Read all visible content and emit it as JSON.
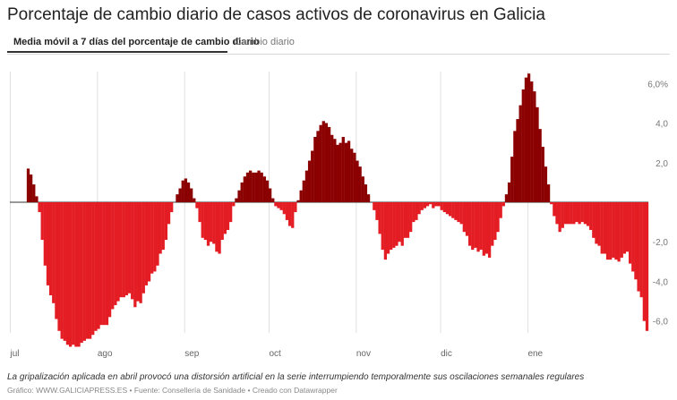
{
  "header": {
    "title": "Porcentaje de cambio diario de casos activos de coronavirus en Galicia"
  },
  "tabs": [
    {
      "label": "Media móvil a 7 días del porcentaje de cambio diario",
      "active": true
    },
    {
      "label": "Cambio diario",
      "active": false
    }
  ],
  "note": "La gripalización aplicada en abril provocó una distorsión artificial en la serie interrumpiendo temporalmente sus oscilaciones semanales regulares",
  "footer": "Gráfico: WWW.GALICIAPRESS.ES • Fuente: Consellería de Sanidade • Creado con Datawrapper",
  "colors": {
    "positive": "#8b0000",
    "negative": "#e31d23",
    "grid": "#e0e0e0",
    "zero": "#333333"
  },
  "chart_data": {
    "type": "bar",
    "title": "Porcentaje de cambio diario de casos activos de coronavirus en Galicia",
    "xlabel": "",
    "ylabel": "",
    "ylim": [
      -6.6,
      6.6
    ],
    "yticks": [
      6,
      4,
      2,
      0,
      -2,
      -4,
      -6
    ],
    "ytick_labels": [
      "6,0%",
      "4,0",
      "2,0",
      "",
      "-2,0",
      "-4,0",
      "-6,0"
    ],
    "xtick_labels": [
      "jul",
      "ago",
      "sep",
      "oct",
      "nov",
      "dic",
      "ene"
    ],
    "xtick_index": [
      0,
      31,
      62,
      92,
      123,
      153,
      184
    ],
    "start": "2020-07-01",
    "values": [
      0.0,
      0.0,
      0.0,
      0.0,
      0.0,
      0.0,
      1.7,
      1.4,
      0.9,
      0.3,
      -0.5,
      -1.9,
      -3.2,
      -4.2,
      -4.7,
      -5.1,
      -5.9,
      -6.5,
      -6.9,
      -7.0,
      -7.2,
      -7.3,
      -7.2,
      -7.3,
      -7.3,
      -7.1,
      -7.0,
      -6.9,
      -6.9,
      -6.7,
      -6.5,
      -6.4,
      -6.2,
      -6.2,
      -6.2,
      -5.8,
      -5.4,
      -5.2,
      -5.0,
      -4.8,
      -4.8,
      -4.7,
      -4.6,
      -4.9,
      -5.3,
      -5.0,
      -5.1,
      -4.6,
      -4.2,
      -4.0,
      -3.6,
      -3.5,
      -3.2,
      -2.6,
      -2.4,
      -1.9,
      -1.1,
      -0.5,
      0.0,
      0.4,
      0.7,
      1.1,
      1.2,
      1.0,
      0.7,
      0.2,
      -0.3,
      -1.0,
      -1.8,
      -1.9,
      -2.2,
      -2.0,
      -2.1,
      -2.5,
      -2.6,
      -1.9,
      -1.6,
      -1.4,
      -1.0,
      -0.2,
      0.2,
      0.6,
      1.0,
      1.3,
      1.5,
      1.6,
      1.5,
      1.5,
      1.6,
      1.5,
      1.3,
      1.1,
      0.7,
      0.2,
      -0.2,
      -0.3,
      -0.4,
      -0.6,
      -0.9,
      -1.2,
      -1.3,
      -0.5,
      0.1,
      0.6,
      1.1,
      1.6,
      2.1,
      2.6,
      3.3,
      3.6,
      3.9,
      4.1,
      4.0,
      3.8,
      3.4,
      3.2,
      2.9,
      3.0,
      3.3,
      3.0,
      3.1,
      2.7,
      2.5,
      2.1,
      1.8,
      1.3,
      0.9,
      0.4,
      0.0,
      -0.4,
      -0.9,
      -1.6,
      -2.4,
      -2.9,
      -2.6,
      -2.4,
      -2.3,
      -2.2,
      -2.0,
      -2.2,
      -1.8,
      -1.8,
      -1.5,
      -1.0,
      -0.9,
      -0.6,
      -0.4,
      -0.3,
      -0.2,
      -0.1,
      -0.3,
      -0.2,
      -0.2,
      -0.4,
      -0.5,
      -0.6,
      -0.7,
      -0.8,
      -0.9,
      -1.0,
      -1.1,
      -1.5,
      -1.7,
      -2.2,
      -2.4,
      -2.3,
      -2.5,
      -2.4,
      -2.7,
      -2.6,
      -2.8,
      -2.2,
      -1.9,
      -1.5,
      -0.8,
      -0.2,
      0.4,
      1.0,
      2.3,
      3.6,
      4.2,
      4.9,
      5.7,
      6.3,
      6.5,
      6.1,
      5.6,
      4.8,
      3.7,
      2.8,
      1.8,
      0.9,
      -0.1,
      -0.7,
      -1.1,
      -1.5,
      -1.3,
      -1.1,
      -1.1,
      -1.1,
      -1.1,
      -1.0,
      -1.1,
      -1.0,
      -1.1,
      -1.2,
      -1.4,
      -1.8,
      -2.1,
      -2.2,
      -2.6,
      -2.6,
      -2.9,
      -2.9,
      -2.8,
      -2.9,
      -3.0,
      -2.8,
      -2.6,
      -2.5,
      -3.1,
      -3.5,
      -3.9,
      -4.5,
      -4.8,
      -6.0,
      -6.5
    ]
  }
}
